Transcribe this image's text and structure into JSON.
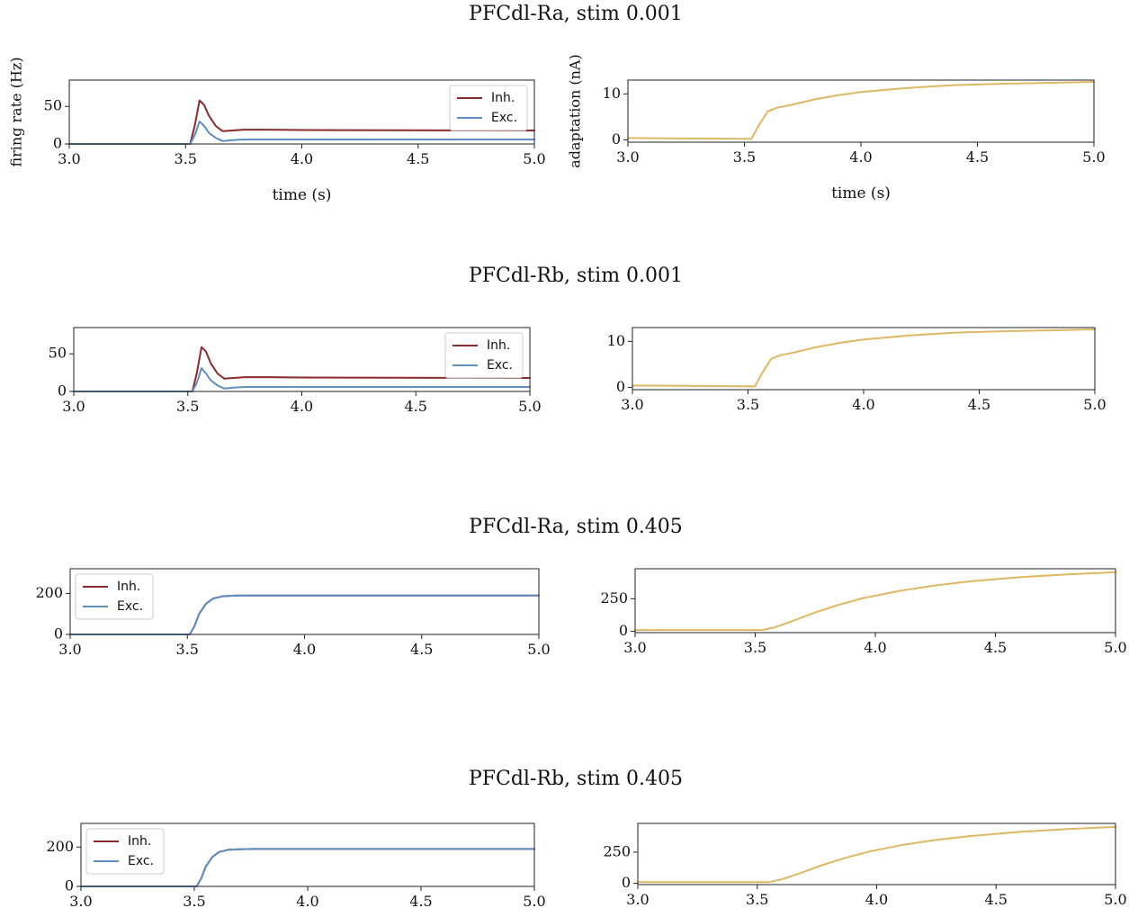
{
  "colors": {
    "inh": "#8b2a2a",
    "exc": "#5f8ec4",
    "adaptation": "#e0b763",
    "axis": "#222222"
  },
  "x_ticks": [
    "3.0",
    "3.5",
    "4.0",
    "4.5",
    "5.0"
  ],
  "rows": [
    {
      "title": "PFCdl-Ra, stim 0.001"
    },
    {
      "title": "PFCdl-Rb, stim 0.001"
    },
    {
      "title": "PFCdl-Ra, stim 0.405"
    },
    {
      "title": "PFCdl-Rb, stim 0.405"
    }
  ],
  "chart_data": [
    {
      "type": "line",
      "row": 0,
      "panel": "firing-rate",
      "xlabel": "time (s)",
      "ylabel": "firing rate (Hz)",
      "xlim": [
        3.0,
        5.0
      ],
      "ylim": [
        0,
        85
      ],
      "yticks": [
        "0",
        "50"
      ],
      "legend": {
        "placement": "top-right",
        "entries": [
          "Inh.",
          "Exc."
        ]
      },
      "series": [
        {
          "name": "Inh.",
          "color": "inh",
          "x": [
            3.0,
            3.52,
            3.54,
            3.56,
            3.58,
            3.6,
            3.63,
            3.66,
            3.7,
            3.75,
            3.85,
            4.0,
            5.0
          ],
          "y": [
            0,
            0,
            25,
            58,
            52,
            38,
            24,
            17,
            18,
            19,
            19,
            18.5,
            18
          ]
        },
        {
          "name": "Exc.",
          "color": "exc",
          "x": [
            3.0,
            3.52,
            3.54,
            3.56,
            3.58,
            3.6,
            3.63,
            3.66,
            3.7,
            3.75,
            3.85,
            4.0,
            5.0
          ],
          "y": [
            0,
            0,
            12,
            30,
            24,
            15,
            8,
            4,
            5,
            6,
            6,
            6,
            6
          ]
        }
      ]
    },
    {
      "type": "line",
      "row": 0,
      "panel": "adaptation",
      "xlabel": "time (s)",
      "ylabel": "adaptation (nA)",
      "xlim": [
        3.0,
        5.0
      ],
      "ylim": [
        -0.5,
        13
      ],
      "yticks": [
        "0",
        "10"
      ],
      "series": [
        {
          "color": "adaptation",
          "x": [
            3.0,
            3.3,
            3.53,
            3.56,
            3.6,
            3.64,
            3.7,
            3.8,
            3.9,
            4.0,
            4.2,
            4.4,
            4.6,
            4.8,
            5.0
          ],
          "y": [
            0.4,
            0.3,
            0.2,
            3.0,
            6.2,
            7.0,
            7.6,
            8.8,
            9.7,
            10.4,
            11.3,
            11.9,
            12.2,
            12.4,
            12.6
          ]
        }
      ]
    },
    {
      "type": "line",
      "row": 1,
      "panel": "firing-rate",
      "xlim": [
        3.0,
        5.0
      ],
      "ylim": [
        0,
        85
      ],
      "yticks": [
        "0",
        "50"
      ],
      "legend": {
        "placement": "top-right",
        "entries": [
          "Inh.",
          "Exc."
        ]
      },
      "series": [
        {
          "name": "Inh.",
          "color": "inh",
          "x": [
            3.0,
            3.52,
            3.54,
            3.56,
            3.58,
            3.6,
            3.63,
            3.66,
            3.7,
            3.75,
            3.85,
            4.0,
            5.0
          ],
          "y": [
            0,
            0,
            25,
            59,
            53,
            38,
            24,
            17,
            18,
            19,
            19,
            18.5,
            18
          ]
        },
        {
          "name": "Exc.",
          "color": "exc",
          "x": [
            3.0,
            3.52,
            3.54,
            3.56,
            3.58,
            3.6,
            3.63,
            3.66,
            3.7,
            3.75,
            3.85,
            4.0,
            5.0
          ],
          "y": [
            0,
            0,
            12,
            31,
            24,
            15,
            8,
            4,
            5,
            6,
            6,
            6,
            6
          ]
        }
      ]
    },
    {
      "type": "line",
      "row": 1,
      "panel": "adaptation",
      "xlim": [
        3.0,
        5.0
      ],
      "ylim": [
        -0.5,
        13
      ],
      "yticks": [
        "0",
        "10"
      ],
      "series": [
        {
          "color": "adaptation",
          "x": [
            3.0,
            3.3,
            3.53,
            3.56,
            3.6,
            3.64,
            3.7,
            3.8,
            3.9,
            4.0,
            4.2,
            4.4,
            4.6,
            4.8,
            5.0
          ],
          "y": [
            0.4,
            0.3,
            0.2,
            3.0,
            6.2,
            7.0,
            7.6,
            8.8,
            9.7,
            10.4,
            11.3,
            11.9,
            12.2,
            12.4,
            12.6
          ]
        }
      ]
    },
    {
      "type": "line",
      "row": 2,
      "panel": "firing-rate",
      "xlim": [
        3.0,
        5.0
      ],
      "ylim": [
        0,
        320
      ],
      "yticks": [
        "0",
        "200"
      ],
      "legend": {
        "placement": "top-left",
        "entries": [
          "Inh.",
          "Exc."
        ]
      },
      "series": [
        {
          "name": "Inh.",
          "color": "inh",
          "x": [
            3.0,
            3.51,
            3.53,
            3.55,
            3.58,
            3.61,
            3.65,
            3.7,
            3.75,
            3.8,
            4.0,
            5.0
          ],
          "y": [
            0,
            0,
            40,
            100,
            150,
            175,
            186,
            189,
            190,
            190,
            190,
            190
          ]
        },
        {
          "name": "Exc.",
          "color": "exc",
          "x": [
            3.0,
            3.51,
            3.53,
            3.55,
            3.58,
            3.61,
            3.65,
            3.7,
            3.75,
            3.8,
            4.0,
            5.0
          ],
          "y": [
            0,
            0,
            40,
            100,
            150,
            175,
            186,
            189,
            190,
            190,
            190,
            190
          ]
        }
      ]
    },
    {
      "type": "line",
      "row": 2,
      "panel": "adaptation",
      "xlim": [
        3.0,
        5.0
      ],
      "ylim": [
        -10,
        480
      ],
      "yticks": [
        "0",
        "250"
      ],
      "series": [
        {
          "color": "adaptation",
          "x": [
            3.0,
            3.3,
            3.53,
            3.58,
            3.65,
            3.75,
            3.85,
            3.95,
            4.1,
            4.25,
            4.4,
            4.6,
            4.8,
            5.0
          ],
          "y": [
            10,
            10,
            10,
            30,
            75,
            145,
            205,
            255,
            310,
            352,
            384,
            415,
            437,
            453
          ]
        }
      ]
    },
    {
      "type": "line",
      "row": 3,
      "panel": "firing-rate",
      "xlim": [
        3.0,
        5.0
      ],
      "ylim": [
        0,
        320
      ],
      "yticks": [
        "0",
        "200"
      ],
      "legend": {
        "placement": "top-left",
        "entries": [
          "Inh.",
          "Exc."
        ]
      },
      "series": [
        {
          "name": "Inh.",
          "color": "inh",
          "x": [
            3.0,
            3.51,
            3.53,
            3.55,
            3.58,
            3.61,
            3.65,
            3.7,
            3.75,
            3.8,
            4.0,
            5.0
          ],
          "y": [
            0,
            0,
            40,
            100,
            150,
            175,
            186,
            189,
            190,
            190,
            190,
            190
          ]
        },
        {
          "name": "Exc.",
          "color": "exc",
          "x": [
            3.0,
            3.51,
            3.53,
            3.55,
            3.58,
            3.61,
            3.65,
            3.7,
            3.75,
            3.8,
            4.0,
            5.0
          ],
          "y": [
            0,
            0,
            40,
            100,
            150,
            175,
            186,
            189,
            190,
            190,
            190,
            190
          ]
        }
      ]
    },
    {
      "type": "line",
      "row": 3,
      "panel": "adaptation",
      "xlim": [
        3.0,
        5.0
      ],
      "ylim": [
        -10,
        480
      ],
      "yticks": [
        "0",
        "250"
      ],
      "series": [
        {
          "color": "adaptation",
          "x": [
            3.0,
            3.3,
            3.55,
            3.6,
            3.67,
            3.77,
            3.87,
            3.97,
            4.1,
            4.25,
            4.4,
            4.6,
            4.8,
            5.0
          ],
          "y": [
            10,
            10,
            10,
            30,
            75,
            145,
            205,
            255,
            305,
            348,
            380,
            412,
            435,
            452
          ]
        }
      ]
    }
  ]
}
